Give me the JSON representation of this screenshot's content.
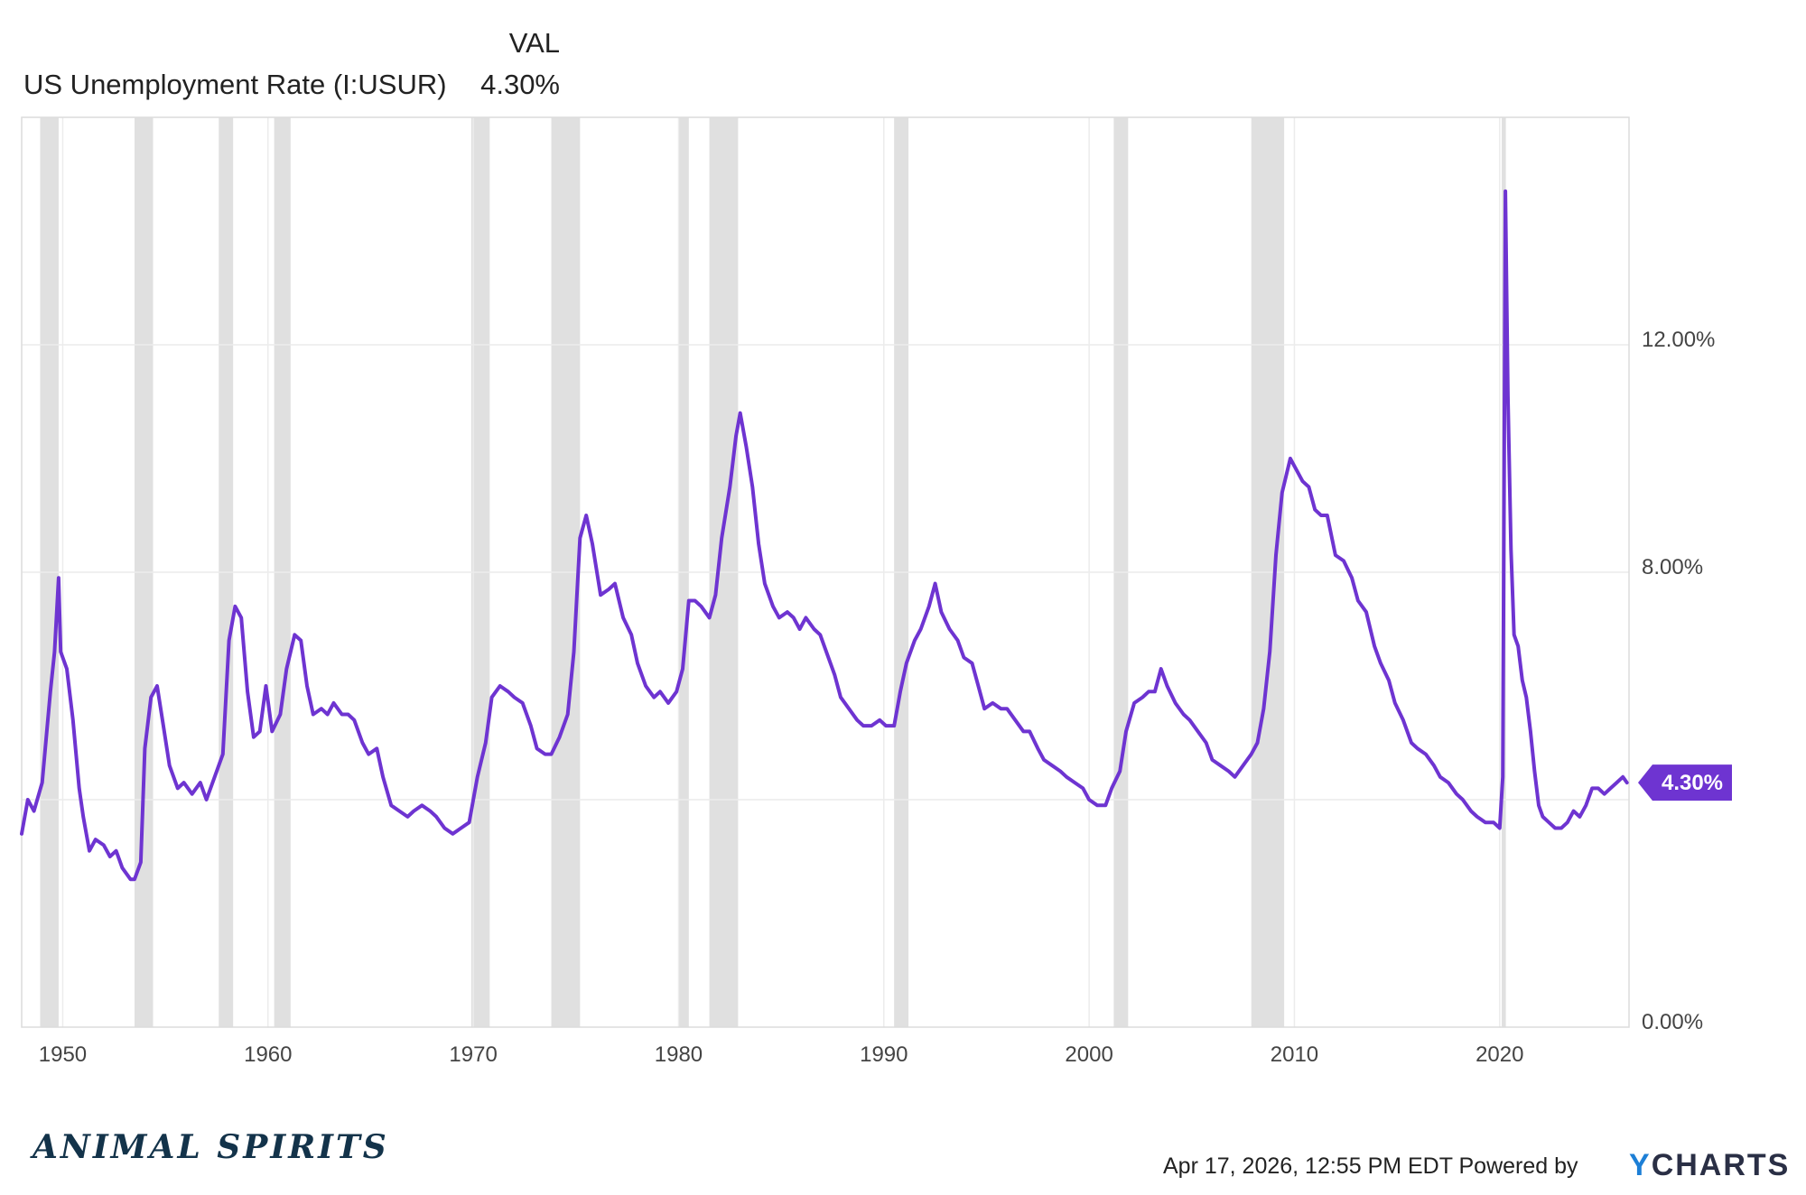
{
  "legend": {
    "header": "VAL",
    "series_name": "US Unemployment Rate (I:USUR)",
    "value": "4.30%"
  },
  "chart_data": {
    "type": "line",
    "title": "",
    "xlabel": "",
    "ylabel": "",
    "x_ticks": [
      "1950",
      "1960",
      "1970",
      "1980",
      "1990",
      "2000",
      "2010",
      "2020"
    ],
    "y_ticks": [
      "0.00%",
      "8.00%",
      "12.00%"
    ],
    "xlim": [
      1948.0,
      2026.3
    ],
    "ylim": [
      0,
      16
    ],
    "line_color": "#6e34d1",
    "recession_color": "#e0e0e0",
    "grid": true,
    "current_value_label": "4.30%",
    "recessions": [
      [
        1948.9,
        1949.8
      ],
      [
        1953.5,
        1954.4
      ],
      [
        1957.6,
        1958.3
      ],
      [
        1960.3,
        1961.1
      ],
      [
        1969.9,
        1970.8
      ],
      [
        1973.8,
        1975.2
      ],
      [
        1980.0,
        1980.5
      ],
      [
        1981.5,
        1982.9
      ],
      [
        1990.5,
        1991.2
      ],
      [
        2001.2,
        2001.9
      ],
      [
        2007.9,
        2009.5
      ],
      [
        2020.1,
        2020.3
      ]
    ],
    "series": [
      {
        "points": [
          [
            1948.0,
            3.4
          ],
          [
            1948.3,
            4.0
          ],
          [
            1948.6,
            3.8
          ],
          [
            1949.0,
            4.3
          ],
          [
            1949.4,
            5.9
          ],
          [
            1949.6,
            6.6
          ],
          [
            1949.8,
            7.9
          ],
          [
            1949.9,
            6.6
          ],
          [
            1950.2,
            6.3
          ],
          [
            1950.5,
            5.4
          ],
          [
            1950.8,
            4.2
          ],
          [
            1951.0,
            3.7
          ],
          [
            1951.3,
            3.1
          ],
          [
            1951.6,
            3.3
          ],
          [
            1952.0,
            3.2
          ],
          [
            1952.3,
            3.0
          ],
          [
            1952.6,
            3.1
          ],
          [
            1952.9,
            2.8
          ],
          [
            1953.3,
            2.6
          ],
          [
            1953.5,
            2.6
          ],
          [
            1953.8,
            2.9
          ],
          [
            1954.0,
            4.9
          ],
          [
            1954.3,
            5.8
          ],
          [
            1954.6,
            6.0
          ],
          [
            1954.9,
            5.3
          ],
          [
            1955.2,
            4.6
          ],
          [
            1955.6,
            4.2
          ],
          [
            1955.9,
            4.3
          ],
          [
            1956.3,
            4.1
          ],
          [
            1956.7,
            4.3
          ],
          [
            1957.0,
            4.0
          ],
          [
            1957.4,
            4.4
          ],
          [
            1957.8,
            4.8
          ],
          [
            1958.1,
            6.8
          ],
          [
            1958.4,
            7.4
          ],
          [
            1958.7,
            7.2
          ],
          [
            1959.0,
            5.9
          ],
          [
            1959.3,
            5.1
          ],
          [
            1959.6,
            5.2
          ],
          [
            1959.9,
            6.0
          ],
          [
            1960.2,
            5.2
          ],
          [
            1960.6,
            5.5
          ],
          [
            1960.9,
            6.3
          ],
          [
            1961.3,
            6.9
          ],
          [
            1961.6,
            6.8
          ],
          [
            1961.9,
            6.0
          ],
          [
            1962.2,
            5.5
          ],
          [
            1962.6,
            5.6
          ],
          [
            1962.9,
            5.5
          ],
          [
            1963.2,
            5.7
          ],
          [
            1963.6,
            5.5
          ],
          [
            1963.9,
            5.5
          ],
          [
            1964.2,
            5.4
          ],
          [
            1964.6,
            5.0
          ],
          [
            1964.9,
            4.8
          ],
          [
            1965.3,
            4.9
          ],
          [
            1965.6,
            4.4
          ],
          [
            1966.0,
            3.9
          ],
          [
            1966.4,
            3.8
          ],
          [
            1966.8,
            3.7
          ],
          [
            1967.1,
            3.8
          ],
          [
            1967.5,
            3.9
          ],
          [
            1967.9,
            3.8
          ],
          [
            1968.2,
            3.7
          ],
          [
            1968.6,
            3.5
          ],
          [
            1969.0,
            3.4
          ],
          [
            1969.4,
            3.5
          ],
          [
            1969.8,
            3.6
          ],
          [
            1970.2,
            4.4
          ],
          [
            1970.6,
            5.0
          ],
          [
            1970.9,
            5.8
          ],
          [
            1971.3,
            6.0
          ],
          [
            1971.7,
            5.9
          ],
          [
            1972.0,
            5.8
          ],
          [
            1972.4,
            5.7
          ],
          [
            1972.8,
            5.3
          ],
          [
            1973.1,
            4.9
          ],
          [
            1973.5,
            4.8
          ],
          [
            1973.8,
            4.8
          ],
          [
            1974.2,
            5.1
          ],
          [
            1974.6,
            5.5
          ],
          [
            1974.9,
            6.6
          ],
          [
            1975.2,
            8.6
          ],
          [
            1975.5,
            9.0
          ],
          [
            1975.8,
            8.5
          ],
          [
            1976.2,
            7.6
          ],
          [
            1976.6,
            7.7
          ],
          [
            1976.9,
            7.8
          ],
          [
            1977.3,
            7.2
          ],
          [
            1977.7,
            6.9
          ],
          [
            1978.0,
            6.4
          ],
          [
            1978.4,
            6.0
          ],
          [
            1978.8,
            5.8
          ],
          [
            1979.1,
            5.9
          ],
          [
            1979.5,
            5.7
          ],
          [
            1979.9,
            5.9
          ],
          [
            1980.2,
            6.3
          ],
          [
            1980.5,
            7.5
          ],
          [
            1980.8,
            7.5
          ],
          [
            1981.1,
            7.4
          ],
          [
            1981.5,
            7.2
          ],
          [
            1981.8,
            7.6
          ],
          [
            1982.1,
            8.6
          ],
          [
            1982.5,
            9.5
          ],
          [
            1982.8,
            10.4
          ],
          [
            1983.0,
            10.8
          ],
          [
            1983.3,
            10.2
          ],
          [
            1983.6,
            9.5
          ],
          [
            1983.9,
            8.5
          ],
          [
            1984.2,
            7.8
          ],
          [
            1984.6,
            7.4
          ],
          [
            1984.9,
            7.2
          ],
          [
            1985.3,
            7.3
          ],
          [
            1985.6,
            7.2
          ],
          [
            1985.9,
            7.0
          ],
          [
            1986.2,
            7.2
          ],
          [
            1986.6,
            7.0
          ],
          [
            1986.9,
            6.9
          ],
          [
            1987.2,
            6.6
          ],
          [
            1987.6,
            6.2
          ],
          [
            1987.9,
            5.8
          ],
          [
            1988.3,
            5.6
          ],
          [
            1988.7,
            5.4
          ],
          [
            1989.0,
            5.3
          ],
          [
            1989.4,
            5.3
          ],
          [
            1989.8,
            5.4
          ],
          [
            1990.1,
            5.3
          ],
          [
            1990.5,
            5.3
          ],
          [
            1990.8,
            5.9
          ],
          [
            1991.1,
            6.4
          ],
          [
            1991.5,
            6.8
          ],
          [
            1991.8,
            7.0
          ],
          [
            1992.2,
            7.4
          ],
          [
            1992.5,
            7.8
          ],
          [
            1992.8,
            7.3
          ],
          [
            1993.2,
            7.0
          ],
          [
            1993.6,
            6.8
          ],
          [
            1993.9,
            6.5
          ],
          [
            1994.3,
            6.4
          ],
          [
            1994.6,
            6.0
          ],
          [
            1994.9,
            5.6
          ],
          [
            1995.3,
            5.7
          ],
          [
            1995.7,
            5.6
          ],
          [
            1996.0,
            5.6
          ],
          [
            1996.4,
            5.4
          ],
          [
            1996.8,
            5.2
          ],
          [
            1997.1,
            5.2
          ],
          [
            1997.5,
            4.9
          ],
          [
            1997.8,
            4.7
          ],
          [
            1998.2,
            4.6
          ],
          [
            1998.6,
            4.5
          ],
          [
            1998.9,
            4.4
          ],
          [
            1999.3,
            4.3
          ],
          [
            1999.7,
            4.2
          ],
          [
            2000.0,
            4.0
          ],
          [
            2000.4,
            3.9
          ],
          [
            2000.8,
            3.9
          ],
          [
            2001.1,
            4.2
          ],
          [
            2001.5,
            4.5
          ],
          [
            2001.8,
            5.2
          ],
          [
            2002.2,
            5.7
          ],
          [
            2002.6,
            5.8
          ],
          [
            2002.9,
            5.9
          ],
          [
            2003.2,
            5.9
          ],
          [
            2003.5,
            6.3
          ],
          [
            2003.8,
            6.0
          ],
          [
            2004.2,
            5.7
          ],
          [
            2004.6,
            5.5
          ],
          [
            2004.9,
            5.4
          ],
          [
            2005.3,
            5.2
          ],
          [
            2005.7,
            5.0
          ],
          [
            2006.0,
            4.7
          ],
          [
            2006.4,
            4.6
          ],
          [
            2006.8,
            4.5
          ],
          [
            2007.1,
            4.4
          ],
          [
            2007.5,
            4.6
          ],
          [
            2007.9,
            4.8
          ],
          [
            2008.2,
            5.0
          ],
          [
            2008.5,
            5.6
          ],
          [
            2008.8,
            6.6
          ],
          [
            2009.1,
            8.3
          ],
          [
            2009.4,
            9.4
          ],
          [
            2009.8,
            10.0
          ],
          [
            2010.1,
            9.8
          ],
          [
            2010.4,
            9.6
          ],
          [
            2010.7,
            9.5
          ],
          [
            2011.0,
            9.1
          ],
          [
            2011.3,
            9.0
          ],
          [
            2011.6,
            9.0
          ],
          [
            2012.0,
            8.3
          ],
          [
            2012.4,
            8.2
          ],
          [
            2012.8,
            7.9
          ],
          [
            2013.1,
            7.5
          ],
          [
            2013.5,
            7.3
          ],
          [
            2013.9,
            6.7
          ],
          [
            2014.2,
            6.4
          ],
          [
            2014.6,
            6.1
          ],
          [
            2014.9,
            5.7
          ],
          [
            2015.3,
            5.4
          ],
          [
            2015.7,
            5.0
          ],
          [
            2016.0,
            4.9
          ],
          [
            2016.4,
            4.8
          ],
          [
            2016.8,
            4.6
          ],
          [
            2017.1,
            4.4
          ],
          [
            2017.5,
            4.3
          ],
          [
            2017.9,
            4.1
          ],
          [
            2018.2,
            4.0
          ],
          [
            2018.6,
            3.8
          ],
          [
            2018.9,
            3.7
          ],
          [
            2019.3,
            3.6
          ],
          [
            2019.7,
            3.6
          ],
          [
            2020.0,
            3.5
          ],
          [
            2020.15,
            4.4
          ],
          [
            2020.28,
            14.7
          ],
          [
            2020.4,
            11.1
          ],
          [
            2020.55,
            8.4
          ],
          [
            2020.7,
            6.9
          ],
          [
            2020.9,
            6.7
          ],
          [
            2021.1,
            6.1
          ],
          [
            2021.3,
            5.8
          ],
          [
            2021.5,
            5.2
          ],
          [
            2021.7,
            4.5
          ],
          [
            2021.9,
            3.9
          ],
          [
            2022.1,
            3.7
          ],
          [
            2022.4,
            3.6
          ],
          [
            2022.7,
            3.5
          ],
          [
            2023.0,
            3.5
          ],
          [
            2023.3,
            3.6
          ],
          [
            2023.6,
            3.8
          ],
          [
            2023.9,
            3.7
          ],
          [
            2024.2,
            3.9
          ],
          [
            2024.5,
            4.2
          ],
          [
            2024.8,
            4.2
          ],
          [
            2025.1,
            4.1
          ],
          [
            2025.4,
            4.2
          ],
          [
            2025.7,
            4.3
          ],
          [
            2026.0,
            4.4
          ],
          [
            2026.2,
            4.3
          ]
        ]
      }
    ]
  },
  "footer": {
    "brand": "ANIMAL SPIRITS",
    "timestamp": "Apr 17, 2026, 12:55 PM EDT Powered by",
    "ycharts_y": "Y",
    "ycharts_rest": "CHARTS"
  }
}
